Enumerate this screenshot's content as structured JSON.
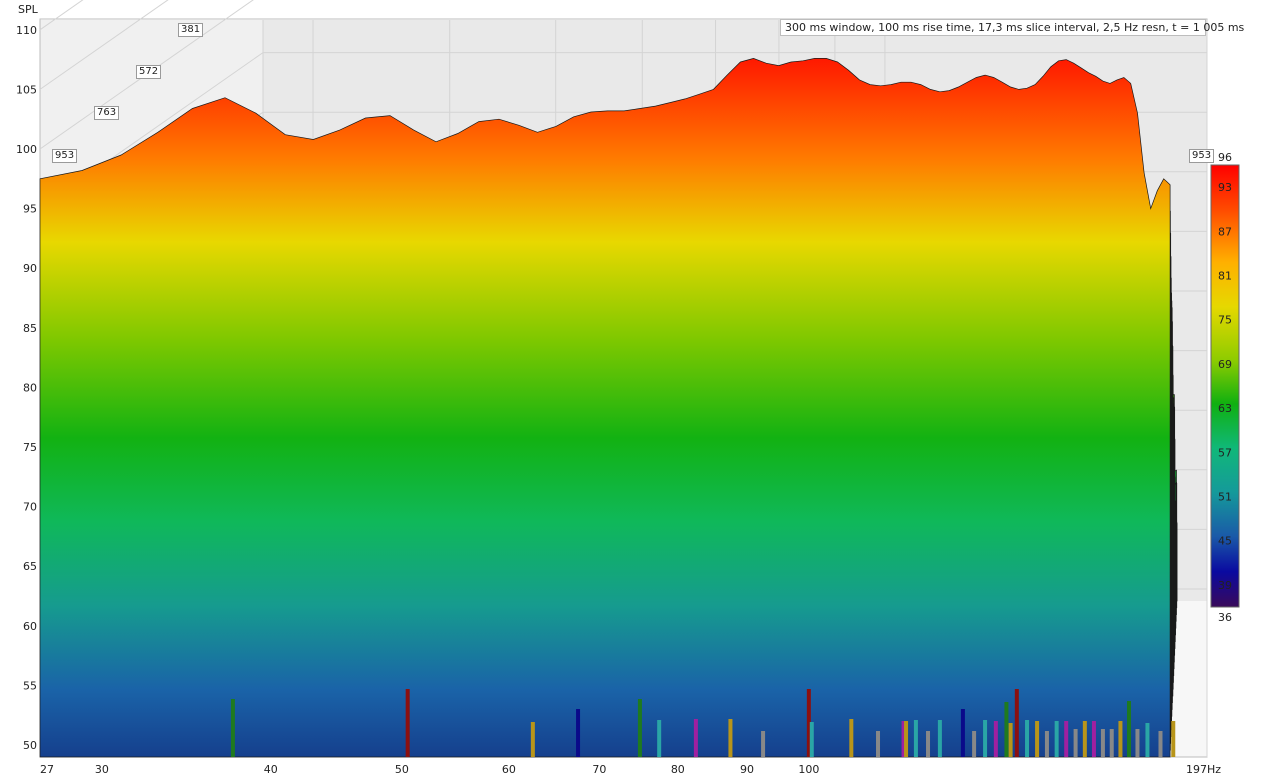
{
  "chart_data": {
    "type": "waterfall",
    "title": "300 ms window, 100 ms rise time, 17,3 ms slice interval, 2,5 Hz resn, t = 1 005 ms",
    "ylabel": "SPL",
    "xunit": "Hz",
    "y_axis": {
      "range": [
        48.5,
        111.5
      ],
      "ticks": [
        "110",
        "105",
        "100",
        "95",
        "90",
        "85",
        "80",
        "75",
        "70",
        "65",
        "60",
        "55",
        "50"
      ]
    },
    "x_axis": {
      "range": [
        27,
        197
      ],
      "ticks": [
        {
          "v": 27,
          "label": "27"
        },
        {
          "v": 30,
          "label": "30"
        },
        {
          "v": 40,
          "label": "40"
        },
        {
          "v": 50,
          "label": "50"
        },
        {
          "v": 60,
          "label": "60"
        },
        {
          "v": 70,
          "label": "70"
        },
        {
          "v": 80,
          "label": "80"
        },
        {
          "v": 90,
          "label": "90"
        },
        {
          "v": 100,
          "label": "100"
        },
        {
          "v": 197,
          "label": "197"
        }
      ]
    },
    "time_tags": [
      "381",
      "572",
      "763",
      "953",
      "953"
    ],
    "colorbar": {
      "min": 36,
      "max": 96,
      "labels": [
        "96",
        "93",
        "87",
        "81",
        "75",
        "69",
        "63",
        "57",
        "51",
        "45",
        "39",
        "36"
      ]
    },
    "front_curve_db": [
      [
        27,
        97.5
      ],
      [
        29,
        98.2
      ],
      [
        31,
        99.5
      ],
      [
        33,
        101.4
      ],
      [
        35,
        103.4
      ],
      [
        37,
        104.3
      ],
      [
        39,
        103.0
      ],
      [
        41,
        101.2
      ],
      [
        43,
        100.8
      ],
      [
        45,
        101.6
      ],
      [
        47,
        102.6
      ],
      [
        49,
        102.8
      ],
      [
        51,
        101.6
      ],
      [
        53,
        100.6
      ],
      [
        55,
        101.3
      ],
      [
        57,
        102.3
      ],
      [
        59,
        102.5
      ],
      [
        61,
        102.0
      ],
      [
        63,
        101.4
      ],
      [
        65,
        101.9
      ],
      [
        67,
        102.7
      ],
      [
        69,
        103.1
      ],
      [
        71,
        103.2
      ],
      [
        73,
        103.2
      ],
      [
        75,
        103.4
      ],
      [
        77,
        103.6
      ],
      [
        79,
        103.9
      ],
      [
        81,
        104.2
      ],
      [
        83,
        104.6
      ],
      [
        85,
        105.0
      ],
      [
        87,
        106.2
      ],
      [
        89,
        107.3
      ],
      [
        91,
        107.6
      ],
      [
        93,
        107.2
      ],
      [
        95,
        107.0
      ],
      [
        97,
        107.3
      ],
      [
        99,
        107.4
      ],
      [
        101,
        107.6
      ],
      [
        103,
        107.6
      ],
      [
        105,
        107.3
      ],
      [
        107,
        106.6
      ],
      [
        109,
        105.8
      ],
      [
        111,
        105.4
      ],
      [
        113,
        105.3
      ],
      [
        115,
        105.4
      ],
      [
        117,
        105.6
      ],
      [
        119,
        105.6
      ],
      [
        121,
        105.4
      ],
      [
        123,
        105.0
      ],
      [
        125,
        104.8
      ],
      [
        127,
        104.9
      ],
      [
        129,
        105.2
      ],
      [
        131,
        105.6
      ],
      [
        133,
        106.0
      ],
      [
        135,
        106.2
      ],
      [
        137,
        106.0
      ],
      [
        139,
        105.6
      ],
      [
        141,
        105.2
      ],
      [
        143,
        105.0
      ],
      [
        145,
        105.1
      ],
      [
        147,
        105.4
      ],
      [
        149,
        106.1
      ],
      [
        151,
        106.9
      ],
      [
        153,
        107.4
      ],
      [
        155,
        107.5
      ],
      [
        157,
        107.2
      ],
      [
        159,
        106.8
      ],
      [
        161,
        106.4
      ],
      [
        163,
        106.1
      ],
      [
        165,
        105.7
      ],
      [
        167,
        105.5
      ],
      [
        169,
        105.8
      ],
      [
        171,
        106.0
      ],
      [
        173,
        105.5
      ],
      [
        175,
        103.0
      ],
      [
        177,
        98.0
      ],
      [
        179,
        95.0
      ],
      [
        181,
        96.5
      ],
      [
        183,
        97.5
      ],
      [
        185,
        97.0
      ]
    ],
    "slice_count": 24,
    "spike_markers": [
      {
        "f": 37.5,
        "color": "#1f7a1f",
        "h": 58
      },
      {
        "f": 50.5,
        "color": "#8b1010",
        "h": 68
      },
      {
        "f": 62.5,
        "color": "#b8951a",
        "h": 35
      },
      {
        "f": 67.5,
        "color": "#0a0a8a",
        "h": 48
      },
      {
        "f": 75,
        "color": "#1f7a1f",
        "h": 58
      },
      {
        "f": 77.5,
        "color": "#2aa6a6",
        "h": 37
      },
      {
        "f": 82.5,
        "color": "#a020a0",
        "h": 38
      },
      {
        "f": 87.5,
        "color": "#b8951a",
        "h": 38
      },
      {
        "f": 92.5,
        "color": "#888888",
        "h": 26
      },
      {
        "f": 100,
        "color": "#8b1010",
        "h": 68
      },
      {
        "f": 100.5,
        "color": "#2aa6a6",
        "h": 35
      },
      {
        "f": 107.5,
        "color": "#b8951a",
        "h": 38
      },
      {
        "f": 112.5,
        "color": "#888888",
        "h": 26
      },
      {
        "f": 117.5,
        "color": "#a020a0",
        "h": 36
      },
      {
        "f": 118,
        "color": "#b8951a",
        "h": 36
      },
      {
        "f": 120,
        "color": "#2aa6a6",
        "h": 37
      },
      {
        "f": 122.5,
        "color": "#888888",
        "h": 26
      },
      {
        "f": 125,
        "color": "#2aa6a6",
        "h": 37
      },
      {
        "f": 130,
        "color": "#0a0a8a",
        "h": 48
      },
      {
        "f": 132.5,
        "color": "#888888",
        "h": 26
      },
      {
        "f": 135,
        "color": "#2aa6a6",
        "h": 37
      },
      {
        "f": 137.5,
        "color": "#a020a0",
        "h": 36
      },
      {
        "f": 140,
        "color": "#1f7a1f",
        "h": 55
      },
      {
        "f": 141,
        "color": "#b8951a",
        "h": 34
      },
      {
        "f": 142.5,
        "color": "#8b1010",
        "h": 68
      },
      {
        "f": 145,
        "color": "#2aa6a6",
        "h": 37
      },
      {
        "f": 147.5,
        "color": "#b8951a",
        "h": 36
      },
      {
        "f": 150,
        "color": "#888888",
        "h": 26
      },
      {
        "f": 152.5,
        "color": "#2aa6a6",
        "h": 36
      },
      {
        "f": 155,
        "color": "#a020a0",
        "h": 36
      },
      {
        "f": 157.5,
        "color": "#888888",
        "h": 28
      },
      {
        "f": 160,
        "color": "#b8951a",
        "h": 36
      },
      {
        "f": 162.5,
        "color": "#a020a0",
        "h": 36
      },
      {
        "f": 165,
        "color": "#888888",
        "h": 28
      },
      {
        "f": 167.5,
        "color": "#888888",
        "h": 28
      },
      {
        "f": 170,
        "color": "#b8951a",
        "h": 36
      },
      {
        "f": 172.5,
        "color": "#1f7a1f",
        "h": 56
      },
      {
        "f": 175,
        "color": "#888888",
        "h": 28
      },
      {
        "f": 178,
        "color": "#2aa6a6",
        "h": 34
      },
      {
        "f": 182,
        "color": "#888888",
        "h": 26
      },
      {
        "f": 186,
        "color": "#b8951a",
        "h": 36
      }
    ]
  }
}
